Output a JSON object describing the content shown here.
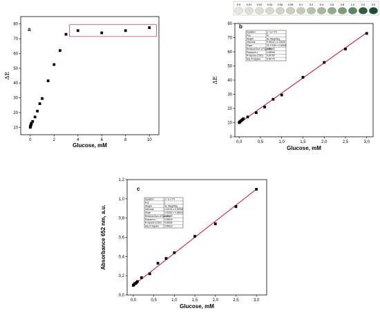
{
  "chart_data": [
    {
      "id": "a",
      "panel_label": "a",
      "type": "scatter",
      "xlabel": "Glucose, mM",
      "ylabel": "ΔE",
      "xlim": [
        -0.8,
        10.8
      ],
      "ylim": [
        5,
        85
      ],
      "xticks": [
        0,
        2,
        4,
        6,
        8,
        10
      ],
      "yticks": [
        10,
        20,
        30,
        40,
        50,
        60,
        70,
        80
      ],
      "xtick_labels": [
        "0",
        "2",
        "4",
        "6",
        "8",
        "10"
      ],
      "ytick_labels": [
        "10",
        "20",
        "30",
        "40",
        "50",
        "60",
        "70",
        "80"
      ],
      "grid": false,
      "series": [
        {
          "x": [
            0,
            0.01,
            0.02,
            0.04,
            0.06,
            0.08,
            0.1,
            0.2,
            0.4,
            0.6,
            0.8,
            1.0,
            1.5,
            2.0,
            2.5,
            3.0,
            4,
            6,
            8,
            10
          ],
          "y": [
            10,
            10.3,
            10.7,
            11.2,
            11.7,
            12.2,
            12.8,
            14,
            17,
            21,
            26,
            29.5,
            41.5,
            52.5,
            62,
            73,
            75.5,
            74,
            75.5,
            77.5
          ]
        }
      ],
      "highlight_range": {
        "x": [
          3.3,
          10.6
        ],
        "y": [
          71.5,
          79.5
        ]
      }
    },
    {
      "id": "b",
      "panel_label": "b",
      "type": "scatter",
      "xlabel": "Glucose, mM",
      "ylabel": "ΔE",
      "xlim": [
        -0.1,
        3.15
      ],
      "ylim": [
        0,
        80
      ],
      "xticks": [
        0,
        0.5,
        1.0,
        1.5,
        2.0,
        2.5,
        3.0
      ],
      "yticks": [
        0,
        10,
        20,
        30,
        40,
        50,
        60,
        70,
        80
      ],
      "xtick_labels": [
        "0,0",
        "0,5",
        "1,0",
        "1,5",
        "2,0",
        "2,5",
        "3,0"
      ],
      "ytick_labels": [
        "0",
        "10",
        "20",
        "30",
        "40",
        "50",
        "60",
        "70",
        "80"
      ],
      "grid": false,
      "series": [
        {
          "x": [
            0,
            0.01,
            0.02,
            0.04,
            0.06,
            0.08,
            0.1,
            0.2,
            0.4,
            0.6,
            0.8,
            1.0,
            1.5,
            2.0,
            2.5,
            3.0
          ],
          "y": [
            10,
            10.3,
            10.7,
            11.2,
            11.7,
            12.2,
            12.8,
            14,
            17,
            21,
            26.5,
            29.5,
            42,
            52.5,
            62,
            73
          ],
          "fit": {
            "x": [
              0,
              3.0
            ],
            "y": [
              9.5,
              73.5
            ],
            "color": "#e8001c"
          }
        }
      ],
      "fit_table": [
        [
          "Equation",
          "y = a + b*x"
        ],
        [
          "Plot",
          "M"
        ],
        [
          "Weight",
          "No Weighting"
        ],
        [
          "Intercept",
          "9.93542 ± 0.21628"
        ],
        [
          "Slope",
          "21.27039 ± 0.18045"
        ],
        [
          "Residual Sum of Squares",
          "0.59653"
        ],
        [
          "Pearson's r",
          "0.99908"
        ],
        [
          "R-Square (COD)",
          "0.99795"
        ],
        [
          "Adj. R-Square",
          "0.99775"
        ]
      ],
      "color_strip": {
        "labels": [
          "0.0",
          "0.01",
          "0.02",
          "0.04",
          "0.06",
          "0.08",
          "0.1",
          "0.2",
          "0.4",
          "0.6",
          "0.8",
          "1.0",
          "2.0",
          "3.0"
        ],
        "colors": [
          "#e6e6e0",
          "#dfe0d8",
          "#dcddd3",
          "#d8dacd",
          "#d2d6c6",
          "#ccd1bf",
          "#c5ccb7",
          "#b9c3ac",
          "#a8b89c",
          "#93aa8a",
          "#7d9b78",
          "#5f8463",
          "#2f5e45",
          "#1d4d38"
        ]
      }
    },
    {
      "id": "c",
      "panel_label": "c",
      "type": "scatter",
      "xlabel": "Glucose, mM",
      "ylabel": "Absorbance 652 nm, a.u.",
      "xlim": [
        -0.15,
        3.25
      ],
      "ylim": [
        0,
        1.2
      ],
      "xticks": [
        0,
        0.5,
        1.0,
        1.5,
        2.0,
        2.5,
        3.0
      ],
      "yticks": [
        0,
        0.2,
        0.4,
        0.6,
        0.8,
        1.0,
        1.2
      ],
      "xtick_labels": [
        "0,0",
        "0,5",
        "1,0",
        "1,5",
        "2,0",
        "2,5",
        "3,0"
      ],
      "ytick_labels": [
        "0,0",
        "0,2",
        "0,4",
        "0,6",
        "0,8",
        "1,0",
        "1,2"
      ],
      "grid": false,
      "series": [
        {
          "x": [
            0,
            0.02,
            0.04,
            0.06,
            0.08,
            0.1,
            0.2,
            0.4,
            0.6,
            0.8,
            1.0,
            1.5,
            2.0,
            2.5,
            3.0
          ],
          "y": [
            0.1,
            0.11,
            0.12,
            0.12,
            0.13,
            0.14,
            0.18,
            0.22,
            0.33,
            0.38,
            0.44,
            0.61,
            0.74,
            0.92,
            1.1
          ],
          "fit": {
            "x": [
              0,
              3.0
            ],
            "y": [
              0.1,
              1.1
            ],
            "color": "#e8001c"
          }
        }
      ],
      "fit_table": [
        [
          "Equation",
          "y = a + b*x"
        ],
        [
          "Plot",
          "L"
        ],
        [
          "Weight",
          "No Weighting"
        ],
        [
          "Intercept",
          "0.10034 ± 0.00958"
        ],
        [
          "Slope",
          "0.33352 ± 0.00615"
        ],
        [
          "Residual Sum of Squares",
          "0.00189"
        ],
        [
          "Pearson's r",
          "0.99815"
        ],
        [
          "R-Square (COD)",
          "0.99639"
        ],
        [
          "Adj. R-Square",
          "0.99622"
        ]
      ]
    }
  ]
}
